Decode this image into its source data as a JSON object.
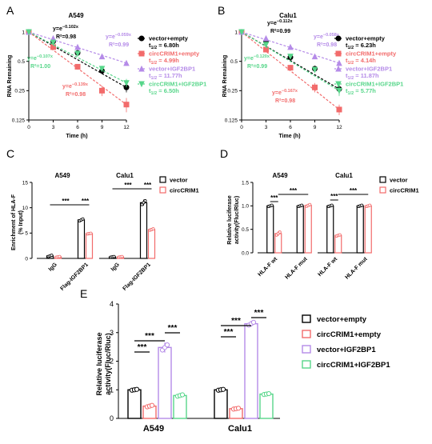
{
  "figure": {
    "panel_labels": [
      "A",
      "B",
      "C",
      "D",
      "E"
    ]
  },
  "colors": {
    "black": "#000000",
    "red": "#f26b6b",
    "purple": "#b58be8",
    "green": "#57d68a"
  },
  "chart_data": [
    {
      "id": "A",
      "type": "line",
      "title": "A549",
      "xlabel": "Time (h)",
      "ylabel": "RNA Remaining",
      "x": [
        0,
        3,
        6,
        9,
        12
      ],
      "xticks": [
        "0",
        "3",
        "6",
        "9",
        "12"
      ],
      "yscale": "log2",
      "yticks": [
        "1",
        "0.5",
        "0.25",
        "0.125"
      ],
      "ylim": [
        0.125,
        1
      ],
      "series": [
        {
          "name": "vector+empty",
          "color": "#000000",
          "marker": "circle",
          "values": [
            1,
            0.8,
            0.61,
            0.4,
            0.27
          ],
          "errors": [
            0.01,
            0.03,
            0.03,
            0.03,
            0.03
          ],
          "equation": "y=e^{-0.102x}",
          "eq_base": "y=e",
          "eq_exp": "−0.102x",
          "r2": "R²=0.98",
          "half_life": "t1/2 = 6.80h",
          "hl_main": "t",
          "hl_sub": "1/2",
          "hl_val": " = 6.80h"
        },
        {
          "name": "circCRIM1+empty",
          "color": "#f26b6b",
          "marker": "square",
          "values": [
            1,
            0.7,
            0.44,
            0.25,
            0.18
          ],
          "errors": [
            0.01,
            0.03,
            0.03,
            0.03,
            0.03
          ],
          "equation": "y=e^{-0.139x}",
          "eq_base": "y=e",
          "eq_exp": "−0.139x",
          "r2": "R²=0.98",
          "half_life": "t1/2 = 4.99h",
          "hl_main": "t",
          "hl_sub": "1/2",
          "hl_val": " = 4.99h"
        },
        {
          "name": "vector+IGF2BP1",
          "color": "#b58be8",
          "marker": "triangle",
          "values": [
            1,
            0.86,
            0.7,
            0.56,
            0.48
          ],
          "errors": [
            0.01,
            0.02,
            0.02,
            0.03,
            0.03
          ],
          "equation": "y=e^{-0.059x}",
          "eq_base": "y=e",
          "eq_exp": "−0.059x",
          "r2": "R²=0.99",
          "half_life": "t1/2 = 11.77h",
          "hl_main": "t",
          "hl_sub": "1/2",
          "hl_val": " = 11.77h"
        },
        {
          "name": "circCRIM1+IGF2BP1",
          "color": "#57d68a",
          "marker": "triangle-down",
          "values": [
            1,
            0.78,
            0.6,
            0.42,
            0.3
          ],
          "errors": [
            0.01,
            0.02,
            0.03,
            0.03,
            0.03
          ],
          "equation": "y=e^{-0.107x}",
          "eq_base": "y=e",
          "eq_exp": "−0.107x",
          "r2": "R²=1.00",
          "half_life": "t1/2 = 6.50h",
          "hl_main": "t",
          "hl_sub": "1/2",
          "hl_val": " = 6.50h"
        }
      ]
    },
    {
      "id": "B",
      "type": "line",
      "title": "Calu1",
      "xlabel": "Time (h)",
      "ylabel": "RNA Remaining",
      "x": [
        0,
        3,
        6,
        9,
        12
      ],
      "xticks": [
        "0",
        "3",
        "6",
        "9",
        "12"
      ],
      "yscale": "log2",
      "yticks": [
        "1",
        "0.5",
        "0.25",
        "0.125"
      ],
      "ylim": [
        0.125,
        1
      ],
      "series": [
        {
          "name": "vector+empty",
          "color": "#000000",
          "marker": "circle",
          "values": [
            1,
            0.8,
            0.55,
            0.42,
            0.26
          ],
          "errors": [
            0.01,
            0.03,
            0.03,
            0.03,
            0.03
          ],
          "equation": "y=e^{-0.112x}",
          "eq_base": "y=e",
          "eq_exp": "−0.112x",
          "r2": "R²=0.99",
          "half_life": "t1/2 = 6.23h",
          "hl_main": "t",
          "hl_sub": "1/2",
          "hl_val": " = 6.23h"
        },
        {
          "name": "circCRIM1+empty",
          "color": "#f26b6b",
          "marker": "square",
          "values": [
            1,
            0.66,
            0.43,
            0.27,
            0.16
          ],
          "errors": [
            0.01,
            0.03,
            0.03,
            0.03,
            0.02
          ],
          "equation": "y=e^{-0.167x}",
          "eq_base": "y=e",
          "eq_exp": "−0.167x",
          "r2": "R²=0.98",
          "half_life": "t1/2 = 4.14h",
          "hl_main": "t",
          "hl_sub": "1/2",
          "hl_val": " = 4.14h"
        },
        {
          "name": "vector+IGF2BP1",
          "color": "#b58be8",
          "marker": "triangle",
          "values": [
            1,
            0.86,
            0.7,
            0.56,
            0.48
          ],
          "errors": [
            0.01,
            0.02,
            0.03,
            0.03,
            0.03
          ],
          "equation": "y=e^{-0.058x}",
          "eq_base": "y=e",
          "eq_exp": "−0.058x",
          "r2": "R²=0.98",
          "half_life": "t1/2 = 11.87h",
          "hl_main": "t",
          "hl_sub": "1/2",
          "hl_val": " = 11.87h"
        },
        {
          "name": "circCRIM1+IGF2BP1",
          "color": "#57d68a",
          "marker": "triangle-down",
          "values": [
            1,
            0.74,
            0.56,
            0.41,
            0.25
          ],
          "errors": [
            0.01,
            0.03,
            0.03,
            0.03,
            0.03
          ],
          "equation": "y=e^{-0.120x}",
          "eq_base": "y=e",
          "eq_exp": "−0.120x",
          "r2": "R²=0.99",
          "half_life": "t1/2 = 5.77h",
          "hl_main": "t",
          "hl_sub": "1/2",
          "hl_val": " = 5.77h"
        }
      ]
    },
    {
      "id": "C",
      "type": "bar",
      "ylabel": "Enrichment of HLA-F\n(% Input)",
      "ylabel_lines": [
        "Enrichment of HLA-F",
        "(% Input)"
      ],
      "ylim": [
        0,
        15
      ],
      "yticks": [
        "0",
        "5",
        "10",
        "15"
      ],
      "groups": [
        {
          "title": "A549",
          "categories": [
            "IgG",
            "Flag-IGF2BP1"
          ]
        },
        {
          "title": "Calu1",
          "categories": [
            "IgG",
            "Flag-IGF2BP1"
          ]
        }
      ],
      "series": [
        {
          "name": "vector",
          "color": "#000000",
          "values": [
            0.5,
            7.6,
            0.3,
            11.0
          ],
          "errors": [
            0.2,
            0.3,
            0.1,
            0.6
          ]
        },
        {
          "name": "circCRIM1",
          "color": "#f26b6b",
          "values": [
            0.3,
            4.9,
            0.3,
            5.7
          ],
          "errors": [
            0.1,
            0.1,
            0.1,
            0.2
          ]
        }
      ],
      "significance": [
        "***",
        "***",
        "***",
        "***"
      ]
    },
    {
      "id": "D",
      "type": "bar",
      "ylabel": "Relative luciferase\nactivity(Fluc/Rluc)",
      "ylabel_lines": [
        "Relative luciferase",
        "activity(Fluc/Rluc)"
      ],
      "ylim": [
        0,
        1.5
      ],
      "yticks": [
        "0.0",
        "0.5",
        "1.0",
        "1.5"
      ],
      "groups": [
        {
          "title": "A549",
          "categories": [
            "HLA-F wt",
            "HLA-F mut"
          ]
        },
        {
          "title": "Calu1",
          "categories": [
            "HLA-F wt",
            "HLA-F mut"
          ]
        }
      ],
      "series": [
        {
          "name": "vector",
          "color": "#000000",
          "values": [
            1.0,
            1.0,
            1.0,
            1.0
          ],
          "errors": [
            0.02,
            0.02,
            0.02,
            0.02
          ]
        },
        {
          "name": "circCRIM1",
          "color": "#f26b6b",
          "values": [
            0.41,
            1.01,
            0.37,
            1.0
          ],
          "errors": [
            0.05,
            0.03,
            0.02,
            0.02
          ]
        }
      ],
      "significance": [
        "***",
        "***",
        "***",
        "***"
      ]
    },
    {
      "id": "E",
      "type": "bar",
      "ylabel": "Relative luciferase\nactivity(Fluc/Rluc)",
      "ylabel_lines": [
        "Relative luciferase",
        "activity(Fluc/Rluc)"
      ],
      "ylim": [
        0,
        4
      ],
      "yticks": [
        "0",
        "1",
        "2",
        "3",
        "4"
      ],
      "categories": [
        "A549",
        "Calu1"
      ],
      "series": [
        {
          "name": "vector+empty",
          "color": "#000000",
          "values": [
            1.0,
            1.0
          ],
          "errors": [
            0.03,
            0.03
          ]
        },
        {
          "name": "circCRIM1+empty",
          "color": "#f26b6b",
          "values": [
            0.43,
            0.34
          ],
          "errors": [
            0.05,
            0.03
          ]
        },
        {
          "name": "vector+IGF2BP1",
          "color": "#b58be8",
          "values": [
            2.48,
            3.31
          ],
          "errors": [
            0.18,
            0.1
          ]
        },
        {
          "name": "circCRIM1+IGF2BP1",
          "color": "#57d68a",
          "values": [
            0.8,
            0.85
          ],
          "errors": [
            0.05,
            0.03
          ]
        }
      ],
      "significance": [
        "***",
        "***",
        "***",
        "***",
        "***",
        "***"
      ]
    }
  ]
}
